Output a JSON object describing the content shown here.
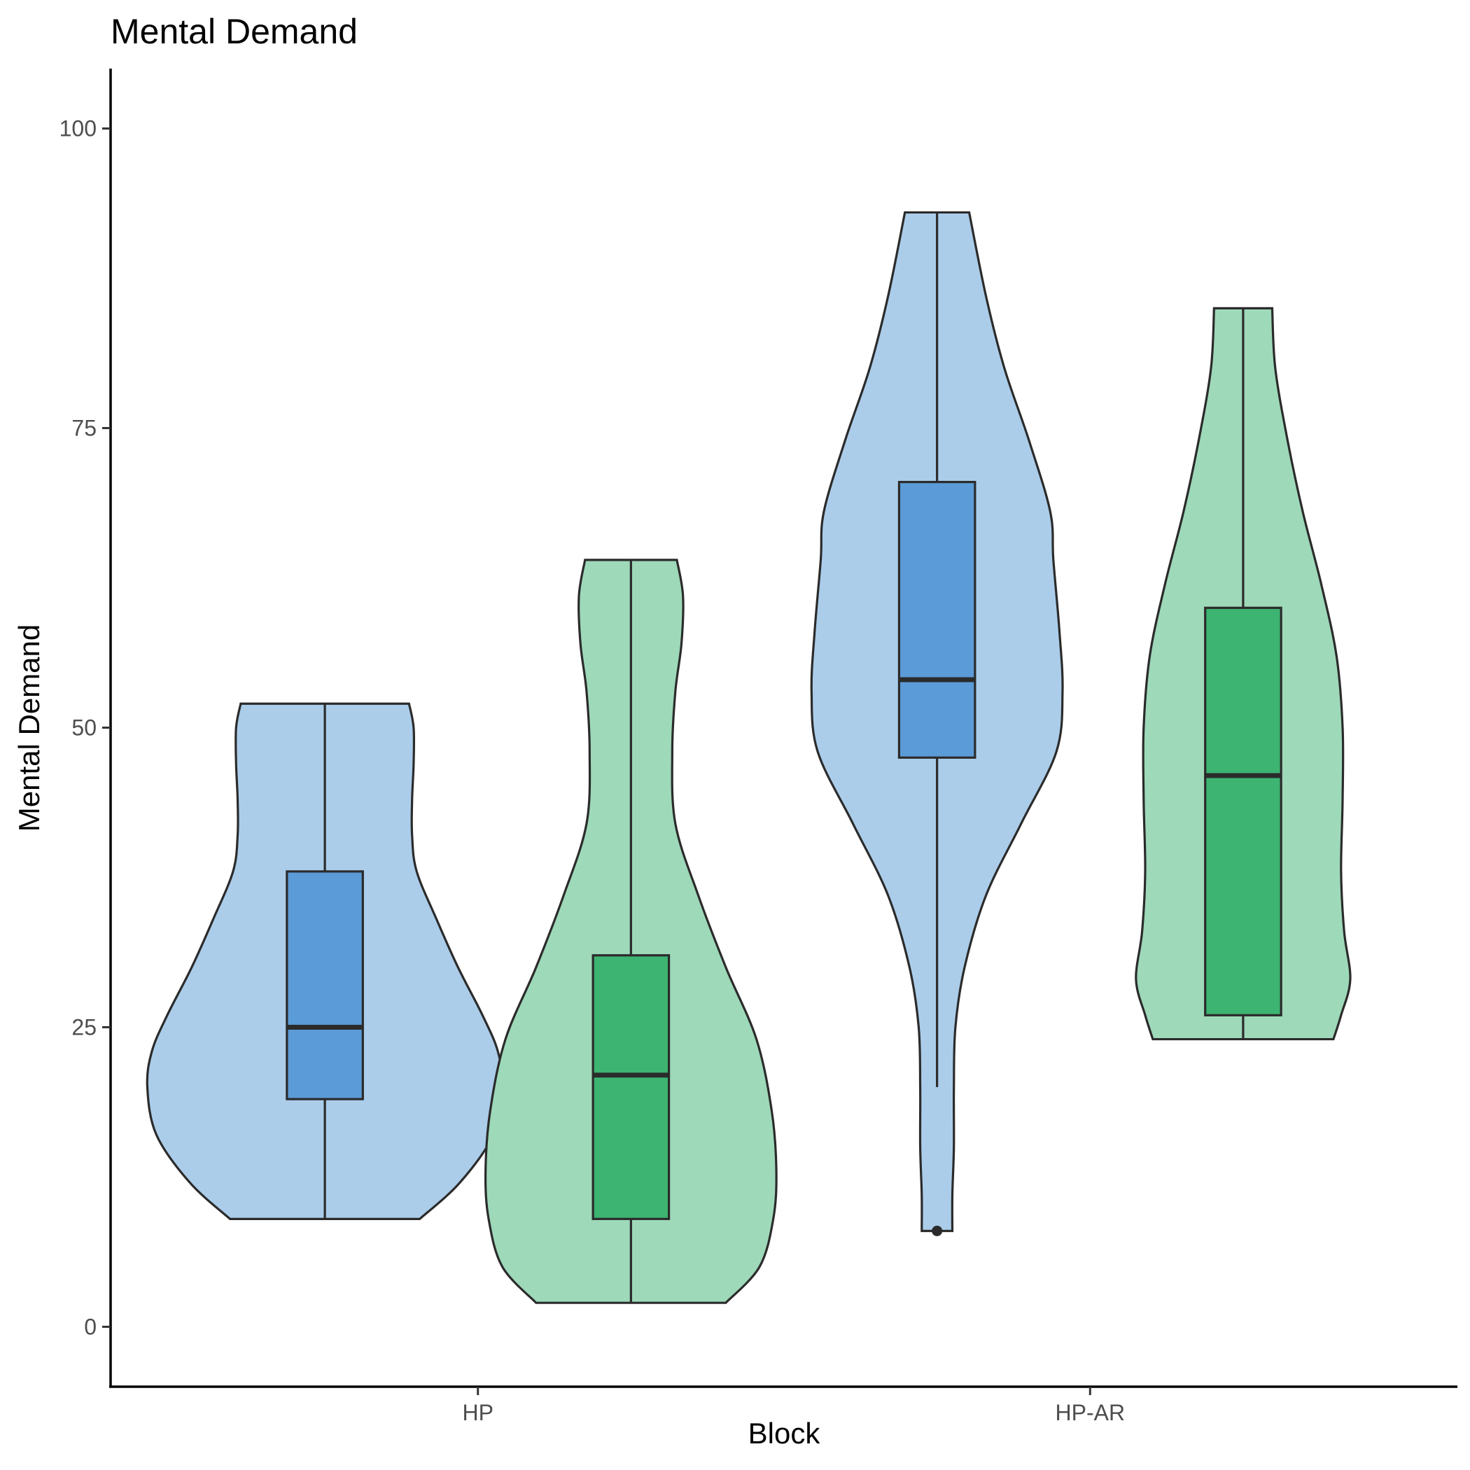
{
  "chart_data": {
    "type": "violin",
    "title": "Mental Demand",
    "xlabel": "Block",
    "ylabel": "Mental Demand",
    "categories": [
      "HP",
      "HP-AR"
    ],
    "ylim": [
      -5,
      105
    ],
    "yticks": [
      0,
      25,
      50,
      75,
      100
    ],
    "grid": false,
    "legend": "none",
    "colors": {
      "series1_violin": "#abcdea",
      "series1_box": "#5b9bd7",
      "series2_violin": "#9ed9b9",
      "series2_box": "#3db472"
    },
    "groups": [
      {
        "category": "HP",
        "series_index": 0,
        "offset": -0.25,
        "box": {
          "min": 9,
          "q1": 19,
          "median": 25,
          "q3": 38,
          "max": 52
        },
        "outliers": [],
        "violin": [
          [
            9,
            0.62
          ],
          [
            12,
            0.88
          ],
          [
            16,
            1.1
          ],
          [
            20,
            1.16
          ],
          [
            23,
            1.13
          ],
          [
            26,
            1.03
          ],
          [
            30,
            0.87
          ],
          [
            34,
            0.73
          ],
          [
            38,
            0.6
          ],
          [
            41,
            0.57
          ],
          [
            44,
            0.57
          ],
          [
            47,
            0.58
          ],
          [
            50,
            0.58
          ],
          [
            52,
            0.55
          ]
        ]
      },
      {
        "category": "HP",
        "series_index": 1,
        "offset": 0.25,
        "box": {
          "min": 2,
          "q1": 9,
          "median": 21,
          "q3": 31,
          "max": 64
        },
        "outliers": [],
        "violin": [
          [
            2,
            0.62
          ],
          [
            5,
            0.84
          ],
          [
            9,
            0.93
          ],
          [
            13,
            0.95
          ],
          [
            18,
            0.92
          ],
          [
            24,
            0.82
          ],
          [
            30,
            0.62
          ],
          [
            36,
            0.44
          ],
          [
            42,
            0.29
          ],
          [
            48,
            0.27
          ],
          [
            53,
            0.29
          ],
          [
            57,
            0.33
          ],
          [
            61,
            0.34
          ],
          [
            64,
            0.3
          ]
        ]
      },
      {
        "category": "HP-AR",
        "series_index": 0,
        "offset": -0.25,
        "box": {
          "min": 20,
          "q1": 47.5,
          "median": 54,
          "q3": 70.5,
          "max": 93
        },
        "outliers": [
          8
        ],
        "violin": [
          [
            8,
            0.1
          ],
          [
            11,
            0.1
          ],
          [
            15,
            0.11
          ],
          [
            20,
            0.11
          ],
          [
            25,
            0.12
          ],
          [
            30,
            0.18
          ],
          [
            36,
            0.32
          ],
          [
            42,
            0.55
          ],
          [
            48,
            0.78
          ],
          [
            53,
            0.82
          ],
          [
            58,
            0.8
          ],
          [
            64,
            0.76
          ],
          [
            68,
            0.74
          ],
          [
            74,
            0.6
          ],
          [
            80,
            0.44
          ],
          [
            86,
            0.32
          ],
          [
            93,
            0.21
          ]
        ]
      },
      {
        "category": "HP-AR",
        "series_index": 1,
        "offset": 0.25,
        "box": {
          "min": 24,
          "q1": 26,
          "median": 46,
          "q3": 60,
          "max": 85
        },
        "outliers": [],
        "violin": [
          [
            24,
            0.59
          ],
          [
            26,
            0.64
          ],
          [
            29,
            0.7
          ],
          [
            33,
            0.66
          ],
          [
            38,
            0.64
          ],
          [
            44,
            0.65
          ],
          [
            50,
            0.65
          ],
          [
            56,
            0.61
          ],
          [
            62,
            0.51
          ],
          [
            68,
            0.39
          ],
          [
            74,
            0.29
          ],
          [
            80,
            0.21
          ],
          [
            85,
            0.19
          ]
        ]
      }
    ]
  }
}
